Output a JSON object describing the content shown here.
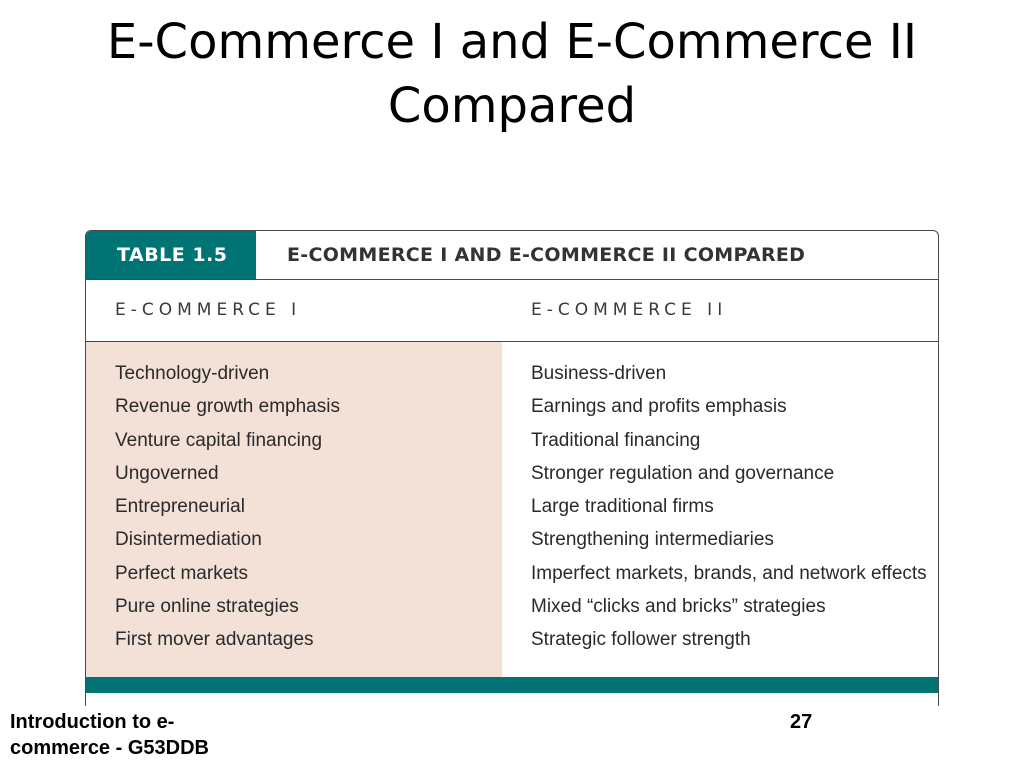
{
  "slide": {
    "title_lines": [
      "E-Commerce I and E-Commerce II",
      "Compared"
    ]
  },
  "table": {
    "label": "TABLE 1.5",
    "caption": "E-COMMERCE I AND E-COMMERCE II COMPARED",
    "columns": [
      "E-COMMERCE I",
      "E-COMMERCE II"
    ],
    "rows": [
      [
        "Technology-driven",
        "Business-driven"
      ],
      [
        "Revenue growth emphasis",
        "Earnings and profits emphasis"
      ],
      [
        "Venture capital financing",
        "Traditional financing"
      ],
      [
        "Ungoverned",
        "Stronger regulation and governance"
      ],
      [
        "Entrepreneurial",
        "Large traditional firms"
      ],
      [
        "Disintermediation",
        "Strengthening intermediaries"
      ],
      [
        "Perfect markets",
        "Imperfect markets, brands, and network effects"
      ],
      [
        "Pure online strategies",
        "Mixed “clicks and bricks” strategies"
      ],
      [
        "First mover advantages",
        "Strategic follower strength"
      ]
    ],
    "colors": {
      "accent": "#007375",
      "left_column_bg": "#f3e0d7"
    }
  },
  "footer": {
    "lines": [
      "Introduction to e-",
      "commerce - G53DDB"
    ],
    "page_number": "27"
  }
}
